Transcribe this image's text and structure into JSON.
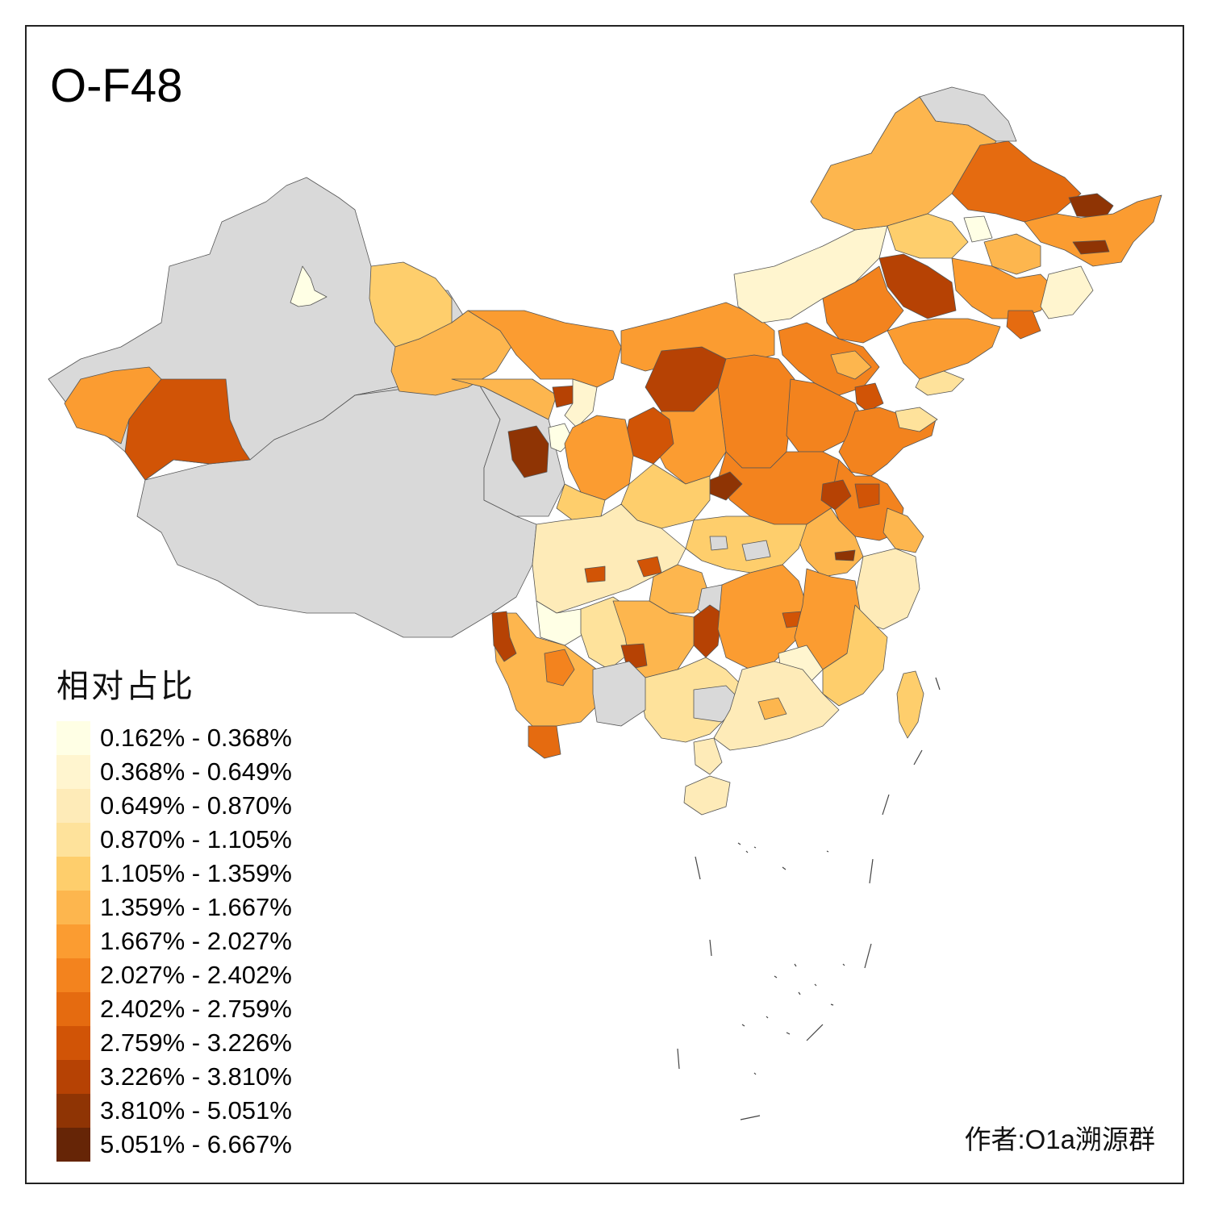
{
  "title": "O-F48",
  "legend": {
    "title": "相对占比",
    "classes": [
      {
        "label": "0.162% - 0.368%",
        "color": "#ffffe5"
      },
      {
        "label": "0.368% - 0.649%",
        "color": "#fff5cf"
      },
      {
        "label": "0.649% - 0.870%",
        "color": "#feebb8"
      },
      {
        "label": "0.870% - 1.105%",
        "color": "#fee29b"
      },
      {
        "label": "1.105% - 1.359%",
        "color": "#fece6c"
      },
      {
        "label": "1.359% - 1.667%",
        "color": "#fdb64e"
      },
      {
        "label": "1.667% - 2.027%",
        "color": "#fb9c31"
      },
      {
        "label": "2.027% - 2.402%",
        "color": "#f3831e"
      },
      {
        "label": "2.402% - 2.759%",
        "color": "#e56b10"
      },
      {
        "label": "2.759% - 3.226%",
        "color": "#d15406"
      },
      {
        "label": "3.226% - 3.810%",
        "color": "#b64204"
      },
      {
        "label": "3.810% - 5.051%",
        "color": "#8f3404"
      },
      {
        "label": "5.051% - 6.667%",
        "color": "#662506"
      }
    ]
  },
  "no_data_color": "#d9d9d9",
  "author": "作者:O1a溯源群"
}
